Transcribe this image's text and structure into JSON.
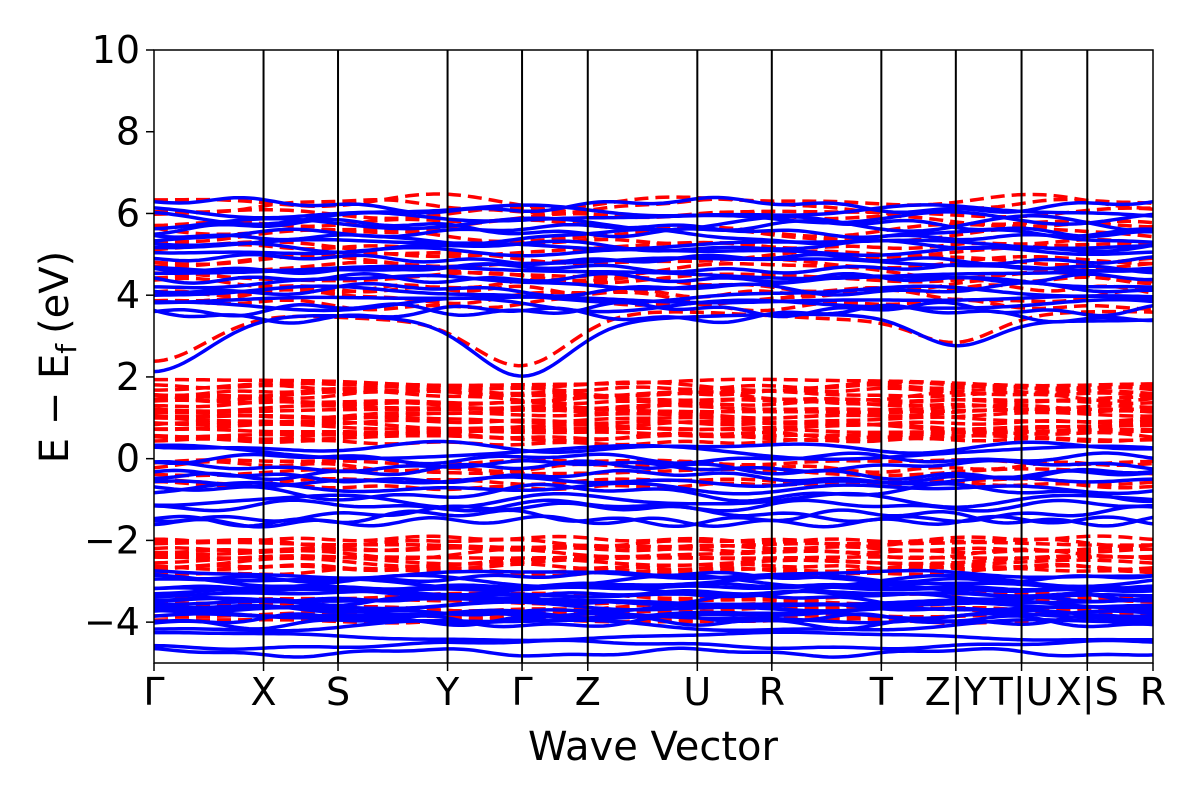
{
  "chart_data": {
    "type": "line",
    "xlabel": "Wave Vector",
    "ylabel": "E − E",
    "ylabel_subscript": "f",
    "ylabel_unit": "(eV)",
    "ylim": [
      -5,
      10
    ],
    "yticks": [
      -4,
      -2,
      0,
      2,
      4,
      6,
      8,
      10
    ],
    "ytick_labels": [
      "−4",
      "−2",
      "0",
      "2",
      "4",
      "6",
      "8",
      "10"
    ],
    "k_points": [
      {
        "label": "Γ",
        "x": 0.0
      },
      {
        "label": "X",
        "x": 0.5
      },
      {
        "label": "S",
        "x": 0.84
      },
      {
        "label": "Y",
        "x": 1.34
      },
      {
        "label": "Γ",
        "x": 1.68
      },
      {
        "label": "Z",
        "x": 1.98
      },
      {
        "label": "U",
        "x": 2.48
      },
      {
        "label": "R",
        "x": 2.82
      },
      {
        "label": "T",
        "x": 3.32
      },
      {
        "label": "Z|Y",
        "x": 3.66
      },
      {
        "label": "T|U",
        "x": 3.96
      },
      {
        "label": "X|S",
        "x": 4.26
      },
      {
        "label": "R",
        "x": 4.56
      }
    ],
    "series": [
      {
        "style": "solid",
        "color": "#0000ff",
        "spin": "up"
      },
      {
        "style": "dashed",
        "color": "#ff0000",
        "spin": "down"
      }
    ],
    "features": {
      "conduction_band_minimum_up": 2.1,
      "conduction_band_minimum_down": 2.3,
      "valence_band_maximum_up": 0.35,
      "valence_band_maximum_down": 1.9
    }
  }
}
